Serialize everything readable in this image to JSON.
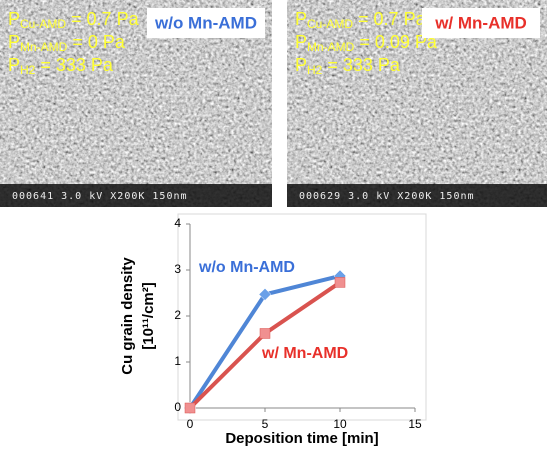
{
  "panels": [
    {
      "lines": [
        {
          "symbol": "P",
          "subscript": "Cu-AMD",
          "text": " = 0.7 Pa"
        },
        {
          "symbol": "P",
          "subscript": "Mn-AMD",
          "text": " = 0 Pa"
        },
        {
          "symbol": "P",
          "subscript": "H2",
          "text": " = 333 Pa"
        }
      ],
      "label": "w/o Mn-AMD",
      "label_color": "#3a6fd8",
      "footer": "000641 3.0 kV X200K 150nm"
    },
    {
      "lines": [
        {
          "symbol": "P",
          "subscript": "Cu-AMD",
          "text": " = 0.7 Pa"
        },
        {
          "symbol": "P",
          "subscript": "Mn-AMD",
          "text": " = 0.09 Pa"
        },
        {
          "symbol": "P",
          "subscript": "H2",
          "text": " = 333 Pa"
        }
      ],
      "label": "w/ Mn-AMD",
      "label_color": "#e8302a",
      "footer": "000629 3.0 kV X200K 150nm"
    }
  ],
  "chart_data": {
    "type": "line",
    "x_label": "Deposition time [min]",
    "y_label": [
      "Cu grain density",
      "[10¹¹/cm²]"
    ],
    "x": [
      0,
      5,
      10
    ],
    "series": [
      {
        "name": "w/o Mn-AMD",
        "color": "#4f86d6",
        "marker": "diamond",
        "values": [
          0,
          2.47,
          2.87
        ]
      },
      {
        "name": "w/ Mn-AMD",
        "color": "#d9534f",
        "marker": "square",
        "values": [
          0,
          1.62,
          2.73
        ]
      }
    ],
    "xlim": [
      0,
      15
    ],
    "xticks": [
      0,
      5,
      10,
      15
    ],
    "ylim": [
      0,
      4
    ],
    "yticks": [
      0,
      1,
      2,
      3,
      4
    ]
  }
}
